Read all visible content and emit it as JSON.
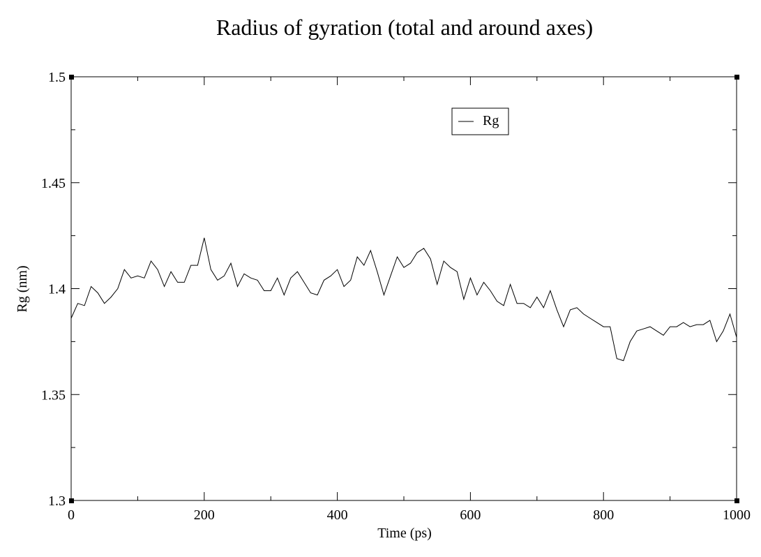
{
  "chart_data": {
    "type": "line",
    "title": "Radius of gyration (total and around axes)",
    "xlabel": "Time (ps)",
    "ylabel": "Rg (nm)",
    "xlim": [
      0,
      1000
    ],
    "ylim": [
      1.3,
      1.5
    ],
    "x_ticks": [
      0,
      200,
      400,
      600,
      800,
      1000
    ],
    "x_tick_labels": [
      "0",
      "200",
      "400",
      "600",
      "800",
      "1000"
    ],
    "y_ticks": [
      1.3,
      1.35,
      1.4,
      1.45,
      1.5
    ],
    "y_tick_labels": [
      "1.3",
      "1.35",
      "1.4",
      "1.45",
      "1.5"
    ],
    "grid": false,
    "legend_position": "top-right",
    "series": [
      {
        "name": "Rg",
        "color": "#000000",
        "x": [
          0,
          10,
          20,
          30,
          40,
          50,
          60,
          70,
          80,
          90,
          100,
          110,
          120,
          130,
          140,
          150,
          160,
          170,
          180,
          190,
          200,
          210,
          220,
          230,
          240,
          250,
          260,
          270,
          280,
          290,
          300,
          310,
          320,
          330,
          340,
          350,
          360,
          370,
          380,
          390,
          400,
          410,
          420,
          430,
          440,
          450,
          460,
          470,
          480,
          490,
          500,
          510,
          520,
          530,
          540,
          550,
          560,
          570,
          580,
          590,
          600,
          610,
          620,
          630,
          640,
          650,
          660,
          670,
          680,
          690,
          700,
          710,
          720,
          730,
          740,
          750,
          760,
          770,
          780,
          790,
          800,
          810,
          820,
          830,
          840,
          850,
          860,
          870,
          880,
          890,
          900,
          910,
          920,
          930,
          940,
          950,
          960,
          970,
          980,
          990,
          1000
        ],
        "y": [
          1.386,
          1.393,
          1.392,
          1.401,
          1.398,
          1.393,
          1.396,
          1.4,
          1.409,
          1.405,
          1.406,
          1.405,
          1.413,
          1.409,
          1.401,
          1.408,
          1.403,
          1.403,
          1.411,
          1.411,
          1.424,
          1.409,
          1.404,
          1.406,
          1.412,
          1.401,
          1.407,
          1.405,
          1.404,
          1.399,
          1.399,
          1.405,
          1.397,
          1.405,
          1.408,
          1.403,
          1.398,
          1.397,
          1.404,
          1.406,
          1.409,
          1.401,
          1.404,
          1.415,
          1.411,
          1.418,
          1.408,
          1.397,
          1.406,
          1.415,
          1.41,
          1.412,
          1.417,
          1.419,
          1.414,
          1.402,
          1.413,
          1.41,
          1.408,
          1.395,
          1.405,
          1.397,
          1.403,
          1.399,
          1.394,
          1.392,
          1.402,
          1.393,
          1.393,
          1.391,
          1.396,
          1.391,
          1.399,
          1.39,
          1.382,
          1.39,
          1.391,
          1.388,
          1.386,
          1.384,
          1.382,
          1.382,
          1.367,
          1.366,
          1.375,
          1.38,
          1.381,
          1.382,
          1.38,
          1.378,
          1.382,
          1.382,
          1.384,
          1.382,
          1.383,
          1.383,
          1.385,
          1.375,
          1.38,
          1.388,
          1.377
        ]
      }
    ]
  }
}
